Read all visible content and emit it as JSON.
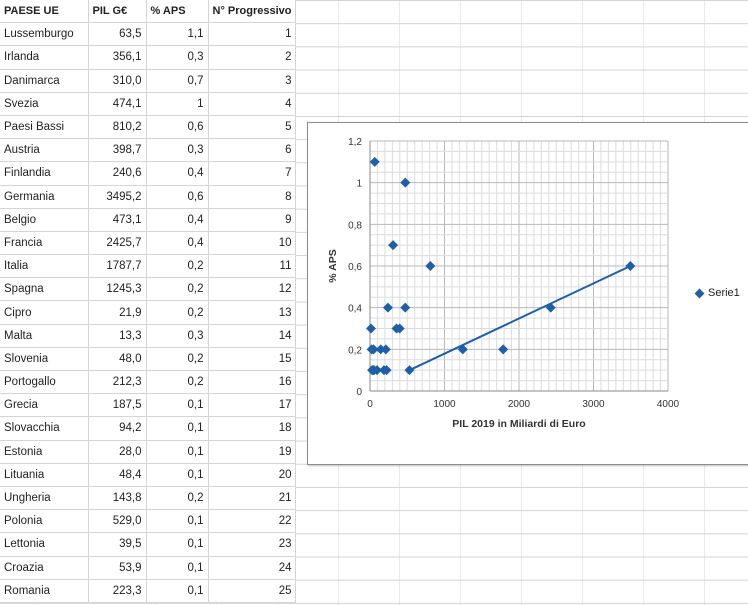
{
  "table": {
    "headers": [
      "PAESE UE",
      "PIL G€",
      "% APS",
      "N° Progressivo"
    ],
    "rows": [
      [
        "Lussemburgo",
        "63,5",
        "1,1",
        "1"
      ],
      [
        "Irlanda",
        "356,1",
        "0,3",
        "2"
      ],
      [
        "Danimarca",
        "310,0",
        "0,7",
        "3"
      ],
      [
        "Svezia",
        "474,1",
        "1",
        "4"
      ],
      [
        "Paesi Bassi",
        "810,2",
        "0,6",
        "5"
      ],
      [
        "Austria",
        "398,7",
        "0,3",
        "6"
      ],
      [
        "Finlandia",
        "240,6",
        "0,4",
        "7"
      ],
      [
        "Germania",
        "3495,2",
        "0,6",
        "8"
      ],
      [
        "Belgio",
        "473,1",
        "0,4",
        "9"
      ],
      [
        "Francia",
        "2425,7",
        "0,4",
        "10"
      ],
      [
        "Italia",
        "1787,7",
        "0,2",
        "11"
      ],
      [
        "Spagna",
        "1245,3",
        "0,2",
        "12"
      ],
      [
        "Cipro",
        "21,9",
        "0,2",
        "13"
      ],
      [
        "Malta",
        "13,3",
        "0,3",
        "14"
      ],
      [
        "Slovenia",
        "48,0",
        "0,2",
        "15"
      ],
      [
        "Portogallo",
        "212,3",
        "0,2",
        "16"
      ],
      [
        "Grecia",
        "187,5",
        "0,1",
        "17"
      ],
      [
        "Slovacchia",
        "94,2",
        "0,1",
        "18"
      ],
      [
        "Estonia",
        "28,0",
        "0,1",
        "19"
      ],
      [
        "Lituania",
        "48,4",
        "0,1",
        "20"
      ],
      [
        "Ungheria",
        "143,8",
        "0,2",
        "21"
      ],
      [
        "Polonia",
        "529,0",
        "0,1",
        "22"
      ],
      [
        "Lettonia",
        "39,5",
        "0,1",
        "23"
      ],
      [
        "Croazia",
        "53,9",
        "0,1",
        "24"
      ],
      [
        "Romania",
        "223,3",
        "0,1",
        "25"
      ]
    ]
  },
  "chart_data": {
    "type": "scatter",
    "title": "",
    "xlabel": "PIL 2019 in Miliardi di Euro",
    "ylabel": "% APS",
    "xlim": [
      0,
      4000
    ],
    "ylim": [
      0,
      1.2
    ],
    "x_ticks": [
      "0",
      "1000",
      "2000",
      "3000",
      "4000"
    ],
    "y_ticks": [
      "0",
      "0,2",
      "0,4",
      "0,6",
      "0,8",
      "1",
      "1,2"
    ],
    "grid": true,
    "legend_position": "right",
    "marker_color": "#1f5fa8",
    "series": [
      {
        "name": "Serie1",
        "x": [
          63.5,
          356.1,
          310.0,
          474.1,
          810.2,
          398.7,
          240.6,
          3495.2,
          473.1,
          2425.7,
          1787.7,
          1245.3,
          21.9,
          13.3,
          48.0,
          212.3,
          187.5,
          94.2,
          28.0,
          48.4,
          143.8,
          529.0,
          39.5,
          53.9,
          223.3
        ],
        "y": [
          1.1,
          0.3,
          0.7,
          1.0,
          0.6,
          0.3,
          0.4,
          0.6,
          0.4,
          0.4,
          0.2,
          0.2,
          0.2,
          0.3,
          0.2,
          0.2,
          0.1,
          0.1,
          0.1,
          0.1,
          0.2,
          0.1,
          0.1,
          0.1,
          0.1
        ]
      }
    ],
    "trendline": {
      "x": [
        529.0,
        3495.2
      ],
      "y": [
        0.1,
        0.6
      ]
    }
  }
}
